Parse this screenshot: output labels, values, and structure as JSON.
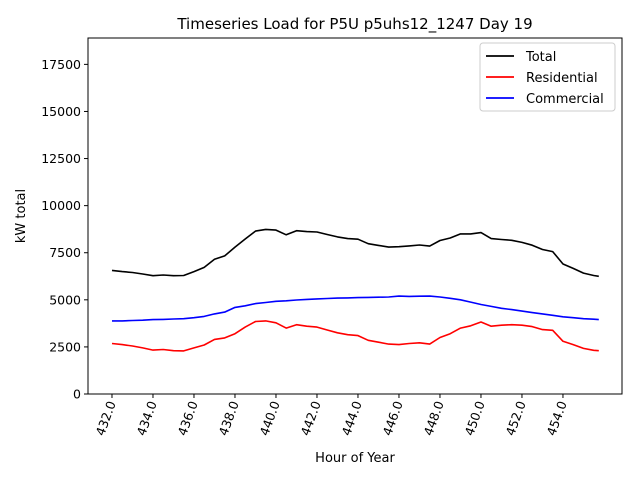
{
  "chart_data": {
    "type": "line",
    "title": "Timeseries Load for P5U p5uhs12_1247  Day 19",
    "xlabel": "Hour of Year",
    "ylabel": "kW total",
    "xlim": [
      430.83,
      456.88
    ],
    "ylim": [
      0,
      18900
    ],
    "xticks": [
      432,
      434,
      436,
      438,
      440,
      442,
      444,
      446,
      448,
      450,
      452,
      454
    ],
    "xtick_labels": [
      "432.0",
      "434.0",
      "436.0",
      "438.0",
      "440.0",
      "442.0",
      "444.0",
      "446.0",
      "448.0",
      "450.0",
      "452.0",
      "454.0"
    ],
    "yticks": [
      0,
      2500,
      5000,
      7500,
      10000,
      12500,
      15000,
      17500
    ],
    "ytick_labels": [
      "0",
      "2500",
      "5000",
      "7500",
      "10000",
      "12500",
      "15000",
      "17500"
    ],
    "grid": false,
    "legend_position": "top-right",
    "x": [
      432,
      432.5,
      433,
      433.5,
      434,
      434.5,
      435,
      435.5,
      436,
      436.5,
      437,
      437.5,
      438,
      438.5,
      439,
      439.5,
      440,
      440.5,
      441,
      441.5,
      442,
      442.5,
      443,
      443.5,
      444,
      444.5,
      445,
      445.5,
      446,
      446.5,
      447,
      447.5,
      448,
      448.5,
      449,
      449.5,
      450,
      450.5,
      451,
      451.5,
      452,
      452.5,
      453,
      453.5,
      454,
      454.5,
      455,
      455.5,
      455.75
    ],
    "series": [
      {
        "name": "Total",
        "color": "#000000",
        "values": [
          6560,
          6500,
          6450,
          6370,
          6280,
          6320,
          6280,
          6290,
          6500,
          6720,
          7150,
          7330,
          7800,
          8230,
          8650,
          8740,
          8700,
          8450,
          8670,
          8620,
          8600,
          8470,
          8340,
          8250,
          8220,
          7980,
          7890,
          7800,
          7820,
          7860,
          7910,
          7850,
          8150,
          8280,
          8500,
          8500,
          8570,
          8250,
          8200,
          8160,
          8050,
          7900,
          7670,
          7560,
          6900,
          6670,
          6420,
          6290,
          6250
        ]
      },
      {
        "name": "Residential",
        "color": "#ff0000",
        "values": [
          2680,
          2620,
          2550,
          2450,
          2330,
          2360,
          2300,
          2290,
          2450,
          2600,
          2900,
          2980,
          3200,
          3550,
          3850,
          3880,
          3780,
          3500,
          3680,
          3600,
          3550,
          3400,
          3250,
          3150,
          3100,
          2850,
          2750,
          2650,
          2620,
          2680,
          2720,
          2650,
          3000,
          3200,
          3500,
          3620,
          3820,
          3600,
          3650,
          3680,
          3650,
          3580,
          3420,
          3380,
          2800,
          2620,
          2420,
          2320,
          2300
        ]
      },
      {
        "name": "Commercial",
        "color": "#0000ff",
        "values": [
          3880,
          3880,
          3900,
          3920,
          3950,
          3960,
          3980,
          4000,
          4050,
          4120,
          4250,
          4350,
          4600,
          4680,
          4800,
          4860,
          4920,
          4950,
          4990,
          5020,
          5050,
          5070,
          5090,
          5100,
          5120,
          5130,
          5140,
          5150,
          5200,
          5180,
          5190,
          5200,
          5150,
          5080,
          5000,
          4880,
          4750,
          4650,
          4550,
          4480,
          4400,
          4320,
          4250,
          4180,
          4100,
          4050,
          4000,
          3970,
          3950
        ]
      }
    ]
  }
}
